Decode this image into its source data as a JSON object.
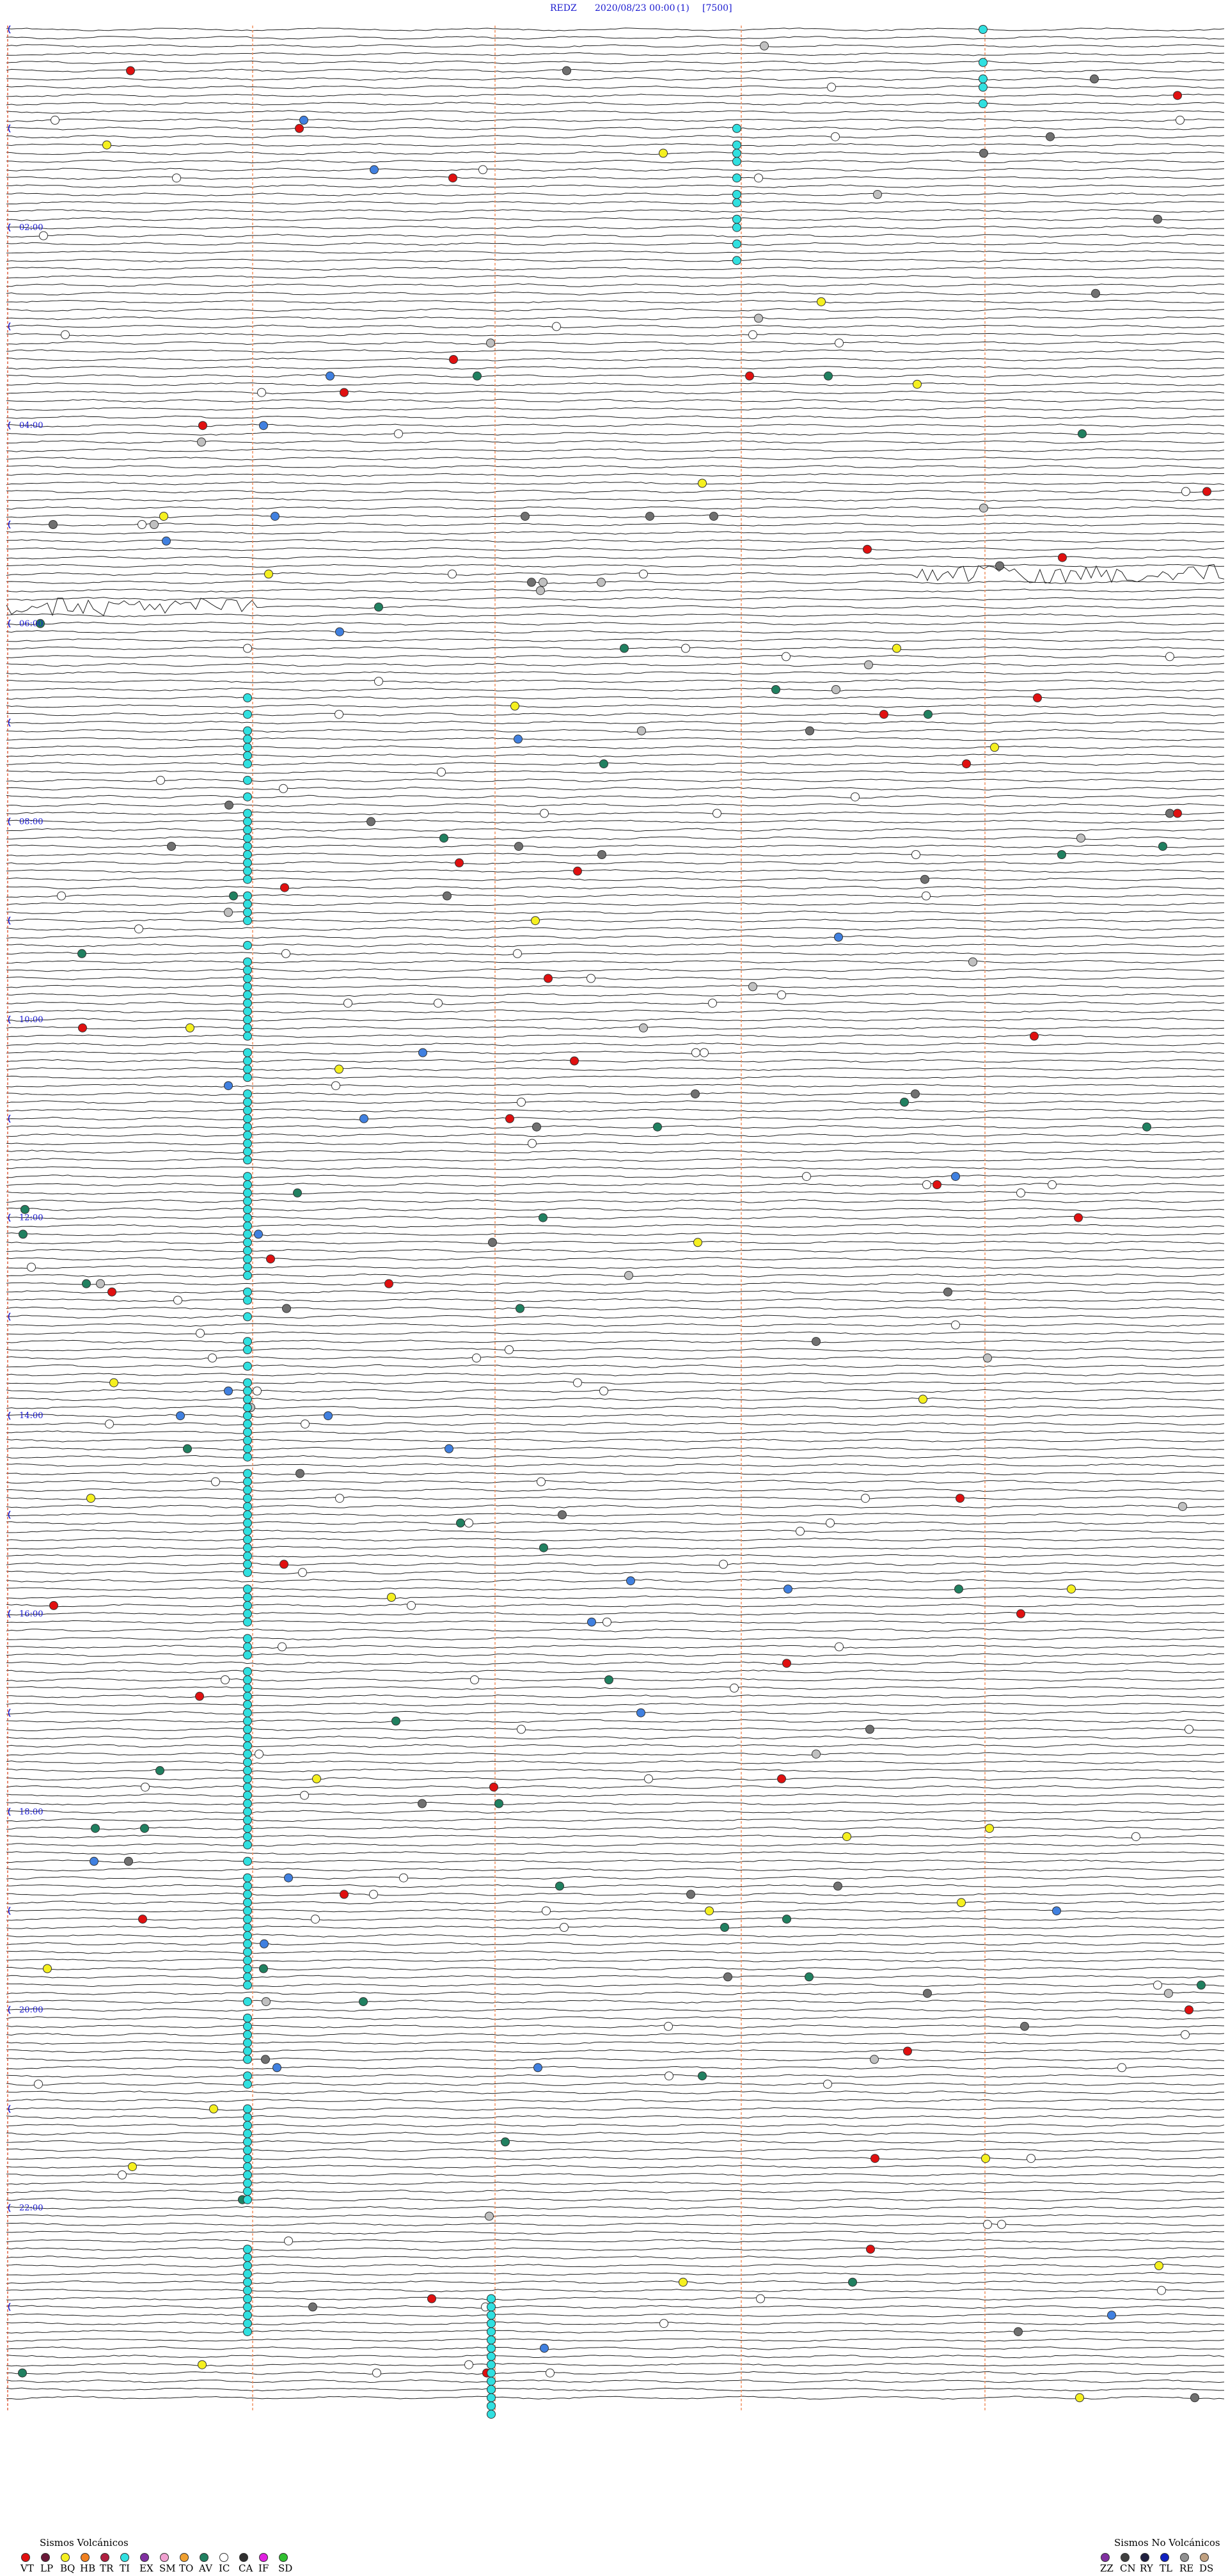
{
  "header": {
    "station": "REDZ",
    "datetime": "2020/08/23 00:00",
    "channel": "(1)",
    "scale": "[7500]"
  },
  "time_labels": [
    "02:00",
    "04:00",
    "06:00",
    "08:00",
    "10:00",
    "12:00",
    "14:00",
    "16:00",
    "18:00",
    "20:00",
    "22:00"
  ],
  "legend": {
    "volcanic": {
      "title": "Sismos Volcánicos",
      "items": [
        {
          "code": "VT",
          "color": "#e01010"
        },
        {
          "code": "LP",
          "color": "#6a1838"
        },
        {
          "code": "BQ",
          "color": "#f5f020"
        },
        {
          "code": "HB",
          "color": "#f08020"
        },
        {
          "code": "TR",
          "color": "#b02040"
        },
        {
          "code": "TI",
          "color": "#30e0e0"
        },
        {
          "code": "EX",
          "color": "#8030a0"
        },
        {
          "code": "SM",
          "color": "#f0a0d0"
        },
        {
          "code": "TO",
          "color": "#f0a030"
        },
        {
          "code": "AV",
          "color": "#208060"
        },
        {
          "code": "IC",
          "color": "#ffffff"
        },
        {
          "code": "CA",
          "color": "#303030"
        },
        {
          "code": "IF",
          "color": "#e020e0"
        },
        {
          "code": "SD",
          "color": "#30c030"
        }
      ]
    },
    "non_volcanic": {
      "title": "Sismos No Volcánicos",
      "items": [
        {
          "code": "ZZ",
          "color": "#8030a0"
        },
        {
          "code": "CN",
          "color": "#404040"
        },
        {
          "code": "RY",
          "color": "#202040"
        },
        {
          "code": "TL",
          "color": "#1020c0"
        },
        {
          "code": "RE",
          "color": "#909090"
        },
        {
          "code": "DS",
          "color": "#c0a080"
        }
      ]
    }
  }
}
